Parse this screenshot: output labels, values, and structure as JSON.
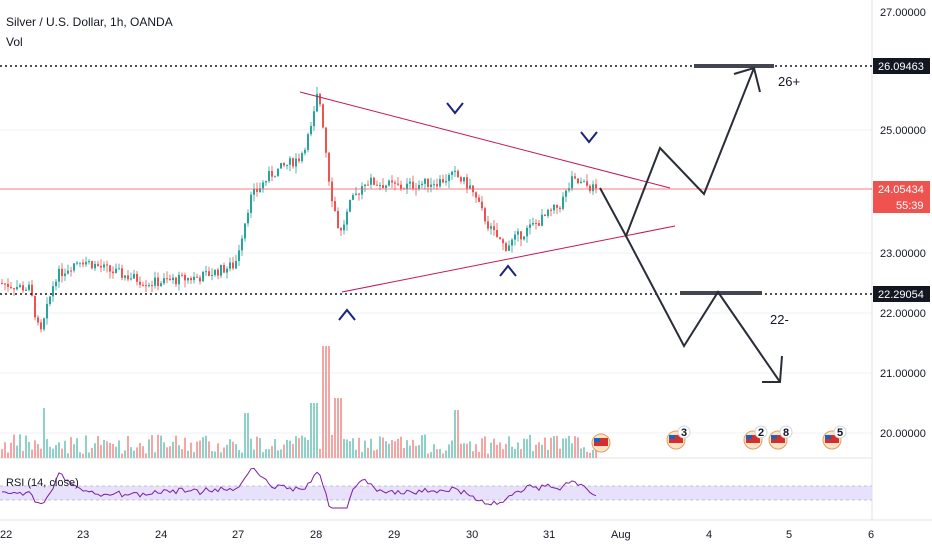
{
  "header": {
    "title": "Silver / U.S. Dollar, 1h, OANDA",
    "volume_label": "Vol"
  },
  "rsi_label": "RSI (14, close)",
  "countdown": "55:39",
  "colors": {
    "up": "#26a69a",
    "down": "#ef5350",
    "line": "#b71c1c",
    "rsi": "#7b1fa2",
    "rsi_band": "#e1d9fb",
    "arrow": "#1a237e",
    "level_bg": "#131722",
    "price_bg": "#ef5350"
  },
  "events": [
    "3",
    "2",
    "8",
    "5"
  ],
  "chart_data": {
    "type": "candlestick",
    "y_ticks": [
      "27.00000",
      "25.00000",
      "23.00000",
      "22.00000",
      "21.00000",
      "20.00000"
    ],
    "x_ticks": [
      "22",
      "23",
      "24",
      "27",
      "28",
      "29",
      "30",
      "31",
      "Aug",
      "4",
      "5",
      "6"
    ],
    "ylim": [
      19.6,
      27.1
    ],
    "levels": [
      {
        "label": "26.09463",
        "value": 26.09463,
        "style": "dotted"
      },
      {
        "label": "22.29054",
        "value": 22.29054,
        "style": "dotted"
      }
    ],
    "last_price": {
      "label": "24.05434",
      "value": 24.05434
    },
    "annotations": [
      {
        "text": "26+",
        "target": 26.09463
      },
      {
        "text": "22-",
        "target": 22.29054
      }
    ],
    "path_points": [
      [
        29.95,
        24.05
      ],
      [
        30.2,
        23.25
      ],
      [
        30.55,
        24.7
      ],
      [
        30.85,
        23.9
      ],
      [
        31.25,
        26.09
      ],
      [
        31.25,
        22.29
      ],
      [
        31.55,
        21.4
      ],
      [
        31.9,
        22.3
      ],
      [
        32.4,
        20.8
      ]
    ]
  }
}
